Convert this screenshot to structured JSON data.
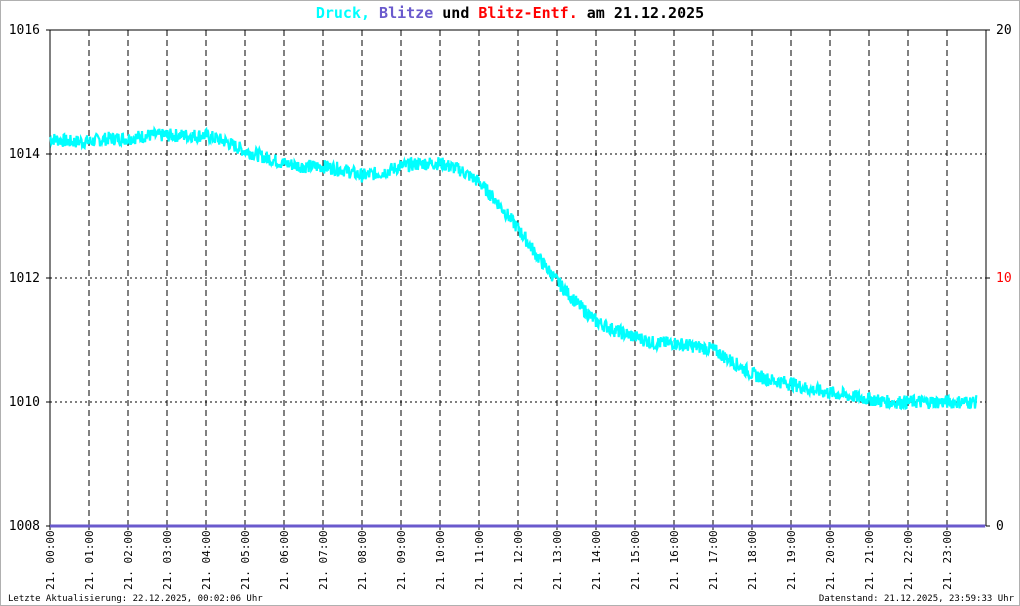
{
  "title": {
    "part1": "Druck,",
    "part2": "Blitze",
    "part3": "und",
    "part4": "Blitz-Entf.",
    "part5": "am 21.12.2025",
    "color1": "#00ffff",
    "color2": "#6a5acd",
    "color3": "#000000",
    "color4": "#ff0000",
    "color5": "#000000"
  },
  "footer": {
    "left": "Letzte Aktualisierung: 22.12.2025, 00:02:06 Uhr",
    "right": "Datenstand: 21.12.2025, 23:59:33 Uhr"
  },
  "chart_data": {
    "type": "line",
    "x_tick_labels": [
      "21. 00:00",
      "21. 01:00",
      "21. 02:00",
      "21. 03:00",
      "21. 04:00",
      "21. 05:00",
      "21. 06:00",
      "21. 07:00",
      "21. 08:00",
      "21. 09:00",
      "21. 10:00",
      "21. 11:00",
      "21. 12:00",
      "21. 13:00",
      "21. 14:00",
      "21. 15:00",
      "21. 16:00",
      "21. 17:00",
      "21. 18:00",
      "21. 19:00",
      "21. 20:00",
      "21. 21:00",
      "21. 22:00",
      "21. 23:00"
    ],
    "y_left_ticks": [
      "1008",
      "1010",
      "1012",
      "1014",
      "1016"
    ],
    "y_left_range": [
      1008,
      1016
    ],
    "y_right_ticks": [
      "0",
      "10",
      "20"
    ],
    "y_right_range": [
      0,
      20
    ],
    "right_tick_colors": [
      "#000000",
      "#ff0000",
      "#000000"
    ],
    "series": [
      {
        "color": "#00ffff",
        "x_hours": [
          0,
          0.5,
          1,
          1.5,
          2,
          2.5,
          3,
          3.5,
          4,
          4.5,
          5,
          5.5,
          6,
          6.5,
          7,
          7.5,
          8,
          8.5,
          9,
          9.5,
          10,
          10.5,
          11,
          11.5,
          12,
          12.5,
          13,
          13.5,
          14,
          14.5,
          15,
          15.5,
          16,
          16.5,
          17,
          17.5,
          18,
          18.5,
          19,
          19.5,
          20,
          20.5,
          21,
          21.5,
          22,
          22.5,
          23,
          23.75
        ],
        "values": [
          1014.25,
          1014.2,
          1014.2,
          1014.25,
          1014.25,
          1014.3,
          1014.3,
          1014.3,
          1014.3,
          1014.2,
          1014.05,
          1013.95,
          1013.85,
          1013.8,
          1013.8,
          1013.75,
          1013.65,
          1013.7,
          1013.8,
          1013.85,
          1013.85,
          1013.75,
          1013.55,
          1013.2,
          1012.8,
          1012.35,
          1011.95,
          1011.6,
          1011.3,
          1011.15,
          1011.05,
          1010.95,
          1010.95,
          1010.9,
          1010.85,
          1010.65,
          1010.45,
          1010.35,
          1010.3,
          1010.2,
          1010.15,
          1010.1,
          1010.05,
          1010.0,
          1010.0,
          1010.0,
          1010.0,
          1010.0
        ]
      },
      {
        "color": "#6a5acd",
        "x_hours": [
          0,
          23.98
        ],
        "values": [
          0,
          0
        ]
      }
    ],
    "grid": true
  }
}
